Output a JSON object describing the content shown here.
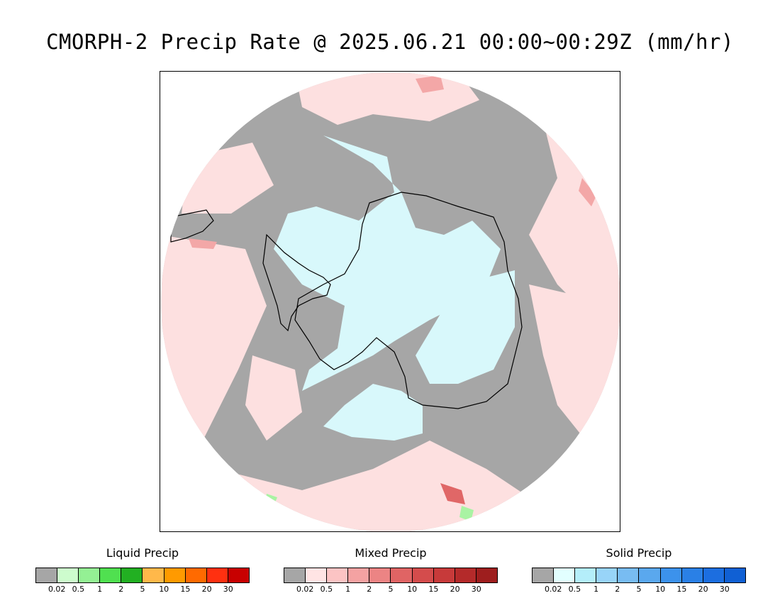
{
  "title": "CMORPH-2 Precip Rate @ 2025.06.21 00:00~00:29Z (mm/hr)",
  "map": {
    "projection": "south-polar-stereographic",
    "colors": {
      "no_precip": "#a6a6a6",
      "mixed_light": "#fde0e0",
      "mixed_mid": "#f3a7a7",
      "mixed_heavy": "#e06767",
      "solid_light": "#d8f8fb",
      "liquid_light": "#a9f3a3",
      "coastline": "#000000",
      "outside": "#ffffff"
    }
  },
  "legends": [
    {
      "title": "Liquid Precip",
      "colors": [
        "#a6a6a6",
        "#cdfccd",
        "#94f094",
        "#50e050",
        "#22b022",
        "#ffb84a",
        "#ff9a00",
        "#ff6a00",
        "#ff3010",
        "#c80000"
      ],
      "ticks": [
        "0.02",
        "0.5",
        "1",
        "2",
        "5",
        "10",
        "15",
        "20",
        "30"
      ]
    },
    {
      "title": "Mixed Precip",
      "colors": [
        "#a6a6a6",
        "#ffe4e4",
        "#fcc4c4",
        "#f4a2a2",
        "#ec8484",
        "#e06464",
        "#d44c4c",
        "#c73a3a",
        "#b42a2a",
        "#9e1e1e"
      ],
      "ticks": [
        "0.02",
        "0.5",
        "1",
        "2",
        "5",
        "10",
        "15",
        "20",
        "30"
      ]
    },
    {
      "title": "Solid Precip",
      "colors": [
        "#a6a6a6",
        "#e2ffff",
        "#b4eefa",
        "#98d4f8",
        "#78bcf2",
        "#5aa8ee",
        "#3c92ec",
        "#2a80e6",
        "#1c6ee0",
        "#1060d4"
      ],
      "ticks": [
        "0.02",
        "0.5",
        "1",
        "2",
        "5",
        "10",
        "15",
        "20",
        "30"
      ]
    }
  ]
}
